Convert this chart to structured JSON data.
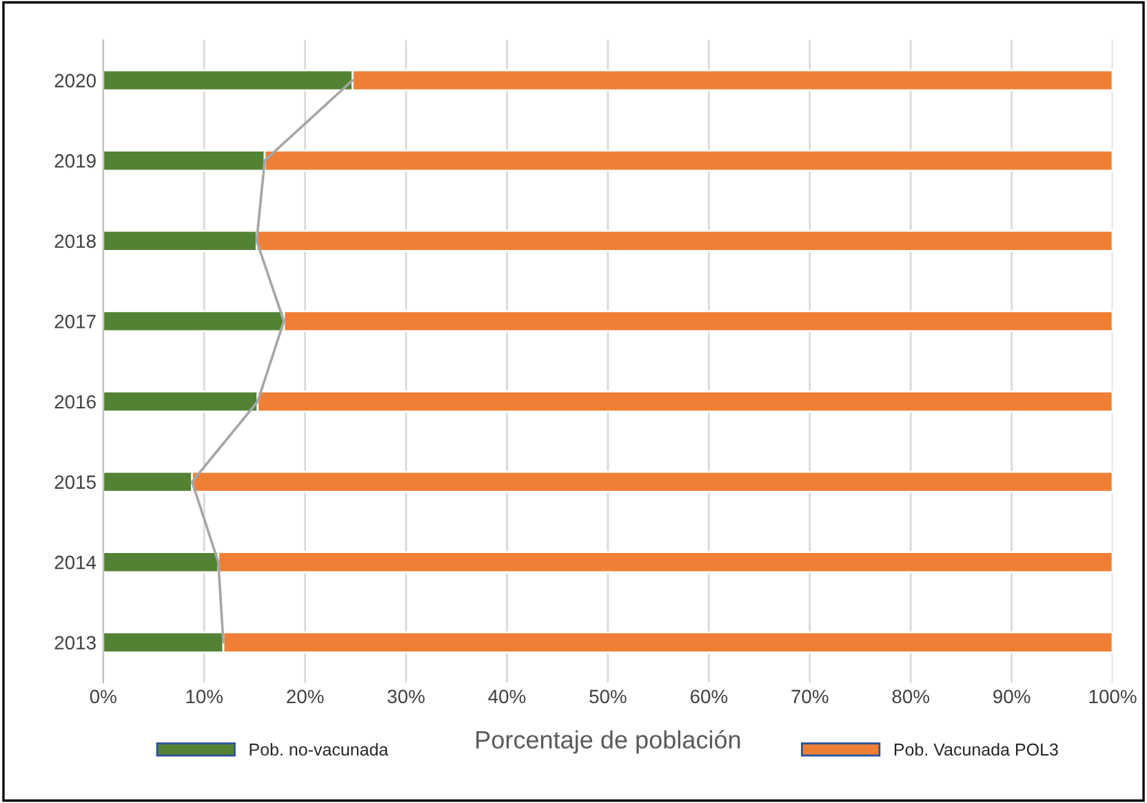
{
  "chart_data": {
    "type": "bar",
    "orientation": "horizontal",
    "stacked": true,
    "xlabel": "Porcentaje de población",
    "categories": [
      "2020",
      "2019",
      "2018",
      "2017",
      "2016",
      "2015",
      "2014",
      "2013"
    ],
    "series": [
      {
        "name": "Pob. no-vacunada",
        "color": "#548235",
        "values": [
          24.7,
          16.0,
          15.2,
          17.9,
          15.3,
          8.8,
          11.4,
          11.9
        ]
      },
      {
        "name": "Pob. Vacunada POL3",
        "color": "#f07f36",
        "values": [
          75.3,
          84.0,
          84.8,
          82.1,
          84.7,
          91.2,
          88.6,
          88.1
        ]
      },
      {
        "type": "line",
        "color": "#a6a6a6",
        "values": [
          24.7,
          16.0,
          15.2,
          17.9,
          15.3,
          8.8,
          11.4,
          11.9
        ]
      }
    ],
    "xlim": [
      0,
      100
    ],
    "xticks": [
      {
        "value": 0,
        "label": "0%"
      },
      {
        "value": 10,
        "label": "10%"
      },
      {
        "value": 20,
        "label": "20%"
      },
      {
        "value": 30,
        "label": "30%"
      },
      {
        "value": 40,
        "label": "40%"
      },
      {
        "value": 50,
        "label": "50%"
      },
      {
        "value": 60,
        "label": "60%"
      },
      {
        "value": 70,
        "label": "70%"
      },
      {
        "value": 80,
        "label": "80%"
      },
      {
        "value": 90,
        "label": "90%"
      },
      {
        "value": 100,
        "label": "100%"
      }
    ],
    "grid": "x",
    "legend": "bottom"
  }
}
